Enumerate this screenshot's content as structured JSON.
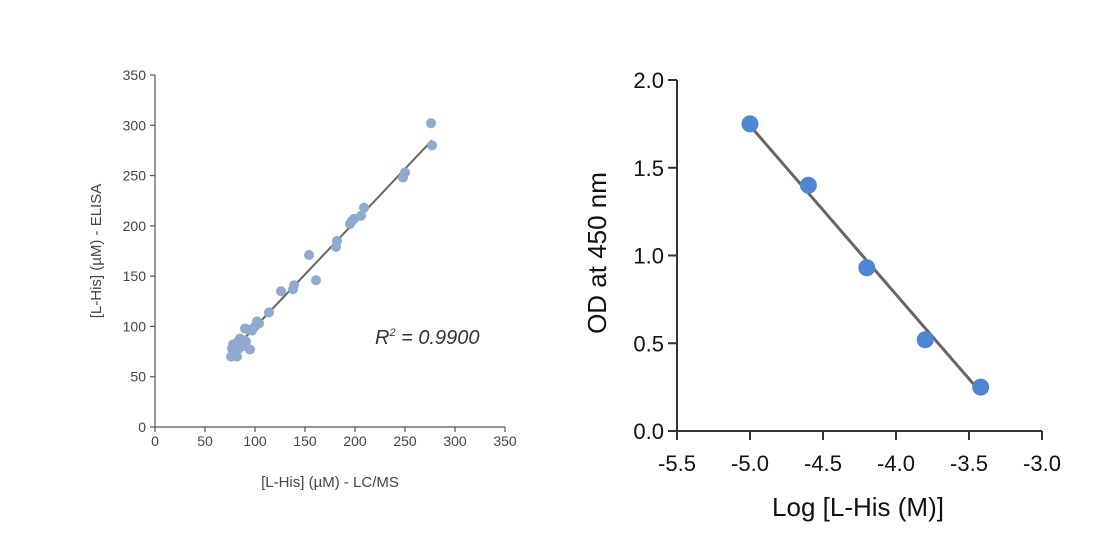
{
  "chart_data": [
    {
      "type": "scatter",
      "xlabel": "[L-His] (µM) - LC/MS",
      "ylabel": "[L-His] (µM) - ELISA",
      "xlim": [
        0,
        350
      ],
      "ylim": [
        0,
        350
      ],
      "xticks": [
        "0",
        "50",
        "100",
        "150",
        "200",
        "250",
        "300",
        "350"
      ],
      "yticks": [
        "0",
        "50",
        "100",
        "150",
        "200",
        "250",
        "300",
        "350"
      ],
      "annotation_prefix": "R",
      "annotation_sup": "2",
      "annotation_value": " = 0.9900",
      "fit_line": {
        "x": [
          75,
          277
        ],
        "y": [
          73,
          285
        ]
      },
      "point_color": "#8fa9cf",
      "line_color": "#666666",
      "points": [
        {
          "x": 76,
          "y": 70
        },
        {
          "x": 77,
          "y": 78
        },
        {
          "x": 78,
          "y": 82
        },
        {
          "x": 79,
          "y": 73
        },
        {
          "x": 80,
          "y": 75
        },
        {
          "x": 81,
          "y": 80
        },
        {
          "x": 82,
          "y": 70
        },
        {
          "x": 83,
          "y": 85
        },
        {
          "x": 84,
          "y": 78
        },
        {
          "x": 85,
          "y": 88
        },
        {
          "x": 86,
          "y": 82
        },
        {
          "x": 87,
          "y": 80
        },
        {
          "x": 88,
          "y": 83
        },
        {
          "x": 89,
          "y": 86
        },
        {
          "x": 90,
          "y": 98
        },
        {
          "x": 91,
          "y": 85
        },
        {
          "x": 93,
          "y": 97
        },
        {
          "x": 95,
          "y": 77
        },
        {
          "x": 97,
          "y": 96
        },
        {
          "x": 100,
          "y": 100
        },
        {
          "x": 102,
          "y": 105
        },
        {
          "x": 104,
          "y": 103
        },
        {
          "x": 114,
          "y": 114
        },
        {
          "x": 126,
          "y": 135
        },
        {
          "x": 138,
          "y": 137
        },
        {
          "x": 139,
          "y": 141
        },
        {
          "x": 154,
          "y": 171
        },
        {
          "x": 161,
          "y": 146
        },
        {
          "x": 181,
          "y": 179
        },
        {
          "x": 182,
          "y": 185
        },
        {
          "x": 195,
          "y": 202
        },
        {
          "x": 197,
          "y": 205
        },
        {
          "x": 199,
          "y": 207
        },
        {
          "x": 206,
          "y": 210
        },
        {
          "x": 209,
          "y": 218
        },
        {
          "x": 248,
          "y": 248
        },
        {
          "x": 250,
          "y": 253
        },
        {
          "x": 276,
          "y": 302
        },
        {
          "x": 277,
          "y": 280
        }
      ]
    },
    {
      "type": "scatter",
      "xlabel": "Log [L-His (M)]",
      "ylabel": "OD at 450 nm",
      "xlim": [
        -5.5,
        -3.0
      ],
      "ylim": [
        0.0,
        2.0
      ],
      "xticks": [
        "-5.5",
        "-5.0",
        "-4.5",
        "-4.0",
        "-3.5",
        "-3.0"
      ],
      "yticks": [
        "0.0",
        "0.5",
        "1.0",
        "1.5",
        "2.0"
      ],
      "fit_line": {
        "x": [
          -5.0,
          -3.42
        ],
        "y": [
          1.74,
          0.22
        ]
      },
      "point_color": "#4f86d4",
      "line_color": "#666666",
      "points": [
        {
          "x": -5.0,
          "y": 1.75
        },
        {
          "x": -4.6,
          "y": 1.4
        },
        {
          "x": -4.2,
          "y": 0.93
        },
        {
          "x": -3.8,
          "y": 0.52
        },
        {
          "x": -3.42,
          "y": 0.25
        }
      ]
    }
  ]
}
